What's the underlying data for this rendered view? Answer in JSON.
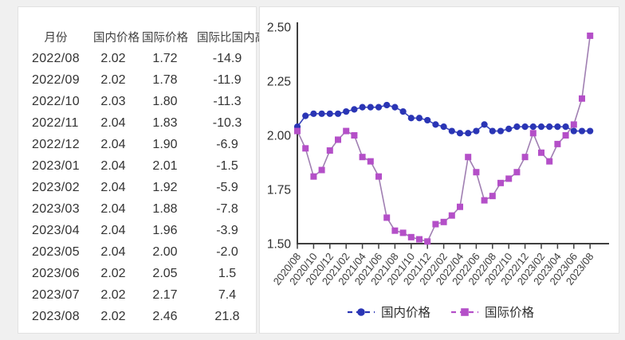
{
  "table": {
    "headers": [
      "月份",
      "国内价格",
      "国际价格",
      "国际比国内高"
    ],
    "rows": [
      {
        "month": "2022/08",
        "domestic": "2.02",
        "international": "1.72",
        "diff": "-14.9"
      },
      {
        "month": "2022/09",
        "domestic": "2.02",
        "international": "1.78",
        "diff": "-11.9"
      },
      {
        "month": "2022/10",
        "domestic": "2.03",
        "international": "1.80",
        "diff": "-11.3"
      },
      {
        "month": "2022/11",
        "domestic": "2.04",
        "international": "1.83",
        "diff": "-10.3"
      },
      {
        "month": "2022/12",
        "domestic": "2.04",
        "international": "1.90",
        "diff": "-6.9"
      },
      {
        "month": "2023/01",
        "domestic": "2.04",
        "international": "2.01",
        "diff": "-1.5"
      },
      {
        "month": "2023/02",
        "domestic": "2.04",
        "international": "1.92",
        "diff": "-5.9"
      },
      {
        "month": "2023/03",
        "domestic": "2.04",
        "international": "1.88",
        "diff": "-7.8"
      },
      {
        "month": "2023/04",
        "domestic": "2.04",
        "international": "1.96",
        "diff": "-3.9"
      },
      {
        "month": "2023/05",
        "domestic": "2.04",
        "international": "2.00",
        "diff": "-2.0"
      },
      {
        "month": "2023/06",
        "domestic": "2.02",
        "international": "2.05",
        "diff": "1.5"
      },
      {
        "month": "2023/07",
        "domestic": "2.02",
        "international": "2.17",
        "diff": "7.4"
      },
      {
        "month": "2023/08",
        "domestic": "2.02",
        "international": "2.46",
        "diff": "21.8"
      }
    ]
  },
  "chart_data": {
    "type": "line",
    "title": "",
    "xlabel": "",
    "ylabel": "",
    "ylim": [
      1.5,
      2.5
    ],
    "yticks": [
      2.5,
      2.25,
      2.0,
      1.75,
      1.5
    ],
    "grid": false,
    "legend_position": "bottom",
    "x": [
      "2020/08",
      "2020/09",
      "2020/10",
      "2020/11",
      "2020/12",
      "2021/01",
      "2021/02",
      "2021/03",
      "2021/04",
      "2021/05",
      "2021/06",
      "2021/07",
      "2021/08",
      "2021/09",
      "2021/10",
      "2021/11",
      "2021/12",
      "2022/01",
      "2022/02",
      "2022/03",
      "2022/04",
      "2022/05",
      "2022/06",
      "2022/07",
      "2022/08",
      "2022/09",
      "2022/10",
      "2022/11",
      "2022/12",
      "2023/01",
      "2023/02",
      "2023/03",
      "2023/04",
      "2023/05",
      "2023/06",
      "2023/07",
      "2023/08"
    ],
    "x_tick_labels": [
      "2020/08",
      "2020/10",
      "2020/12",
      "2021/02",
      "2021/04",
      "2021/06",
      "2021/08",
      "2021/10",
      "2021/12",
      "2022/02",
      "2022/04",
      "2022/06",
      "2022/08",
      "2022/10",
      "2022/12",
      "2023/02",
      "2023/04",
      "2023/06",
      "2023/08"
    ],
    "series": [
      {
        "name": "国内价格",
        "marker": "circle",
        "color": "#2a35b5",
        "line_color": "#3a46bb",
        "values": [
          2.04,
          2.09,
          2.1,
          2.1,
          2.1,
          2.1,
          2.11,
          2.12,
          2.13,
          2.13,
          2.13,
          2.14,
          2.13,
          2.11,
          2.08,
          2.08,
          2.07,
          2.05,
          2.04,
          2.02,
          2.01,
          2.01,
          2.02,
          2.05,
          2.02,
          2.02,
          2.03,
          2.04,
          2.04,
          2.04,
          2.04,
          2.04,
          2.04,
          2.04,
          2.02,
          2.02,
          2.02
        ]
      },
      {
        "name": "国际价格",
        "marker": "square",
        "color": "#b44fc8",
        "line_color": "#a07fb2",
        "values": [
          2.02,
          1.94,
          1.81,
          1.84,
          1.93,
          1.98,
          2.02,
          2.0,
          1.9,
          1.88,
          1.81,
          1.62,
          1.56,
          1.55,
          1.53,
          1.52,
          1.51,
          1.59,
          1.6,
          1.63,
          1.67,
          1.9,
          1.83,
          1.7,
          1.72,
          1.78,
          1.8,
          1.83,
          1.9,
          2.01,
          1.92,
          1.88,
          1.96,
          2.0,
          2.05,
          2.17,
          2.46
        ]
      }
    ]
  },
  "colors": {
    "axis": "#3f3f3f",
    "tick_text": "#3d3d3d",
    "table_text": "#333333",
    "panel_bg": "#ffffff",
    "page_bg": "#f0f0f0"
  }
}
